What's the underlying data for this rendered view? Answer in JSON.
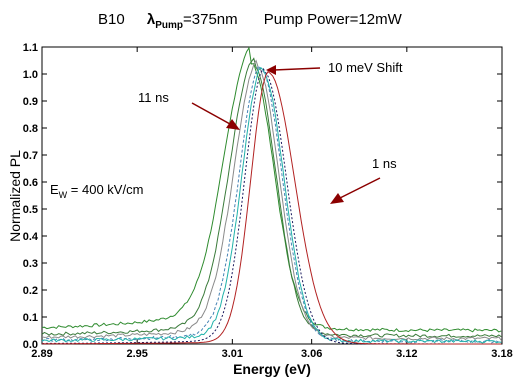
{
  "chart_data": {
    "type": "line",
    "title_parts": {
      "sample": "B10",
      "lambda_symbol": "λ",
      "lambda_sub": "Pump",
      "lambda_value": "=375nm",
      "power": "Pump Power=12mW"
    },
    "xlabel": "Energy (eV)",
    "ylabel": "Normalized PL",
    "xlim": [
      2.89,
      3.18
    ],
    "ylim": [
      0.0,
      1.1
    ],
    "x_ticks": [
      "2.89",
      "2.95",
      "3.01",
      "3.06",
      "3.12",
      "3.18"
    ],
    "y_ticks": [
      "0.0",
      "0.1",
      "0.2",
      "0.3",
      "0.4",
      "0.5",
      "0.6",
      "0.7",
      "0.8",
      "0.9",
      "1.0",
      "1.1"
    ],
    "grid": false,
    "annotations": {
      "shift": "10 meV Shift",
      "late": "11 ns",
      "early": "1 ns",
      "field_main": "E",
      "field_sub": "W",
      "field_value": " = 400 kV/cm"
    },
    "series": [
      {
        "color": "#2e8b2e",
        "dash": "",
        "peak": 3.022,
        "wl": 0.024,
        "wr": 0.02,
        "base": 0.05,
        "tail": 0.1
      },
      {
        "color": "#3a7a3a",
        "dash": "",
        "peak": 3.024,
        "wl": 0.022,
        "wr": 0.019,
        "base": 0.03,
        "tail": 0.06
      },
      {
        "color": "#8a8a8a",
        "dash": "",
        "peak": 3.026,
        "wl": 0.021,
        "wr": 0.019,
        "base": 0.02,
        "tail": 0.05
      },
      {
        "color": "#4682b4",
        "dash": "3,2",
        "peak": 3.028,
        "wl": 0.019,
        "wr": 0.019,
        "base": 0.01,
        "tail": 0.04
      },
      {
        "color": "#20b2aa",
        "dash": "",
        "peak": 3.029,
        "wl": 0.018,
        "wr": 0.019,
        "base": 0.01,
        "tail": 0.03
      },
      {
        "color": "#1a1a5e",
        "dash": "2,2",
        "peak": 3.03,
        "wl": 0.017,
        "wr": 0.02,
        "base": 0.0,
        "tail": 0.02
      },
      {
        "color": "#b22222",
        "dash": "",
        "peak": 3.033,
        "wl": 0.016,
        "wr": 0.023,
        "base": 0.0,
        "tail": 0.01
      }
    ]
  }
}
